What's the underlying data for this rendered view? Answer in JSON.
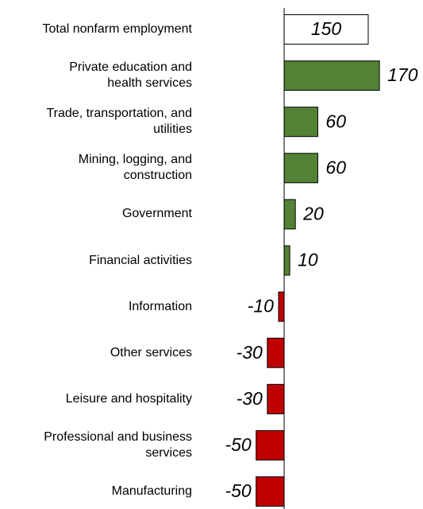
{
  "chart_data": {
    "type": "hbar",
    "categories": [
      "Total nonfarm employment",
      "Private education and\nhealth services",
      "Trade, transportation, and\nutilities",
      "Mining, logging, and\nconstruction",
      "Government",
      "Financial activities",
      "Information",
      "Other services",
      "Leisure and hospitality",
      "Professional and business\nservices",
      "Manufacturing"
    ],
    "values": [
      150,
      170,
      60,
      60,
      20,
      10,
      -10,
      -30,
      -30,
      -50,
      -50
    ],
    "colors": [
      "#ffffff",
      "#548235",
      "#548235",
      "#548235",
      "#548235",
      "#548235",
      "#c00000",
      "#c00000",
      "#c00000",
      "#c00000",
      "#c00000"
    ],
    "xlim": [
      -100,
      200
    ]
  }
}
